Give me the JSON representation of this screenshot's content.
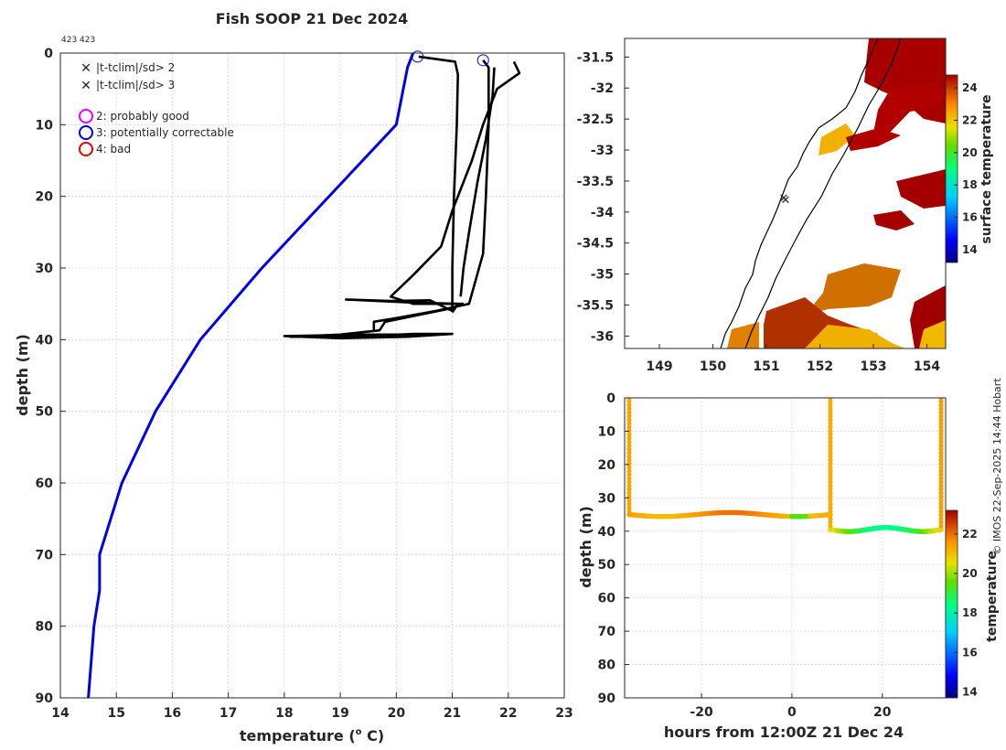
{
  "chart_data": [
    {
      "type": "line",
      "title": "Fish SOOP 21 Dec 2024",
      "subtitle": "423 423",
      "xlabel": "temperature (° C)",
      "xlabel_main": "temperature (",
      "xlabel_sup": "o",
      "xlabel_end": " C)",
      "ylabel": "depth (m)",
      "xlim": [
        14,
        23
      ],
      "ylim": [
        0,
        90
      ],
      "xticks": [
        14,
        15,
        16,
        17,
        18,
        19,
        20,
        21,
        22,
        23
      ],
      "yticks": [
        0,
        10,
        20,
        30,
        40,
        50,
        60,
        70,
        80,
        90
      ],
      "grid": true,
      "legend": {
        "position": "top-left",
        "entries": [
          {
            "label": "|t-tclim|/sd> 2",
            "marker": "x",
            "color": "#00dd00"
          },
          {
            "label": "|t-tclim|/sd> 3",
            "marker": "x",
            "color": "#ee0000"
          },
          {
            "label": "2: probably good",
            "marker": "o",
            "color": "#ee00ee"
          },
          {
            "label": "3: potentially correctable",
            "marker": "o",
            "color": "#0000ee"
          },
          {
            "label": "4: bad",
            "marker": "o",
            "color": "#ee0000"
          }
        ]
      },
      "series": [
        {
          "name": "climatology",
          "color": "#0000ee",
          "points": [
            [
              20.3,
              0
            ],
            [
              20.2,
              2
            ],
            [
              20.0,
              10
            ],
            [
              17.6,
              30
            ],
            [
              16.5,
              40
            ],
            [
              15.7,
              50
            ],
            [
              15.1,
              60
            ],
            [
              14.7,
              70
            ],
            [
              14.7,
              75
            ],
            [
              14.6,
              80
            ],
            [
              14.5,
              90
            ]
          ]
        },
        {
          "name": "profile-1",
          "color": "#000000",
          "points": [
            [
              20.4,
              0.5
            ],
            [
              21.05,
              1.2
            ],
            [
              21.1,
              3
            ],
            [
              21.08,
              10
            ],
            [
              21.03,
              20
            ],
            [
              21.0,
              30
            ],
            [
              21.0,
              36
            ],
            [
              20.6,
              34.5
            ],
            [
              19.9,
              34.6
            ],
            [
              19.1,
              34.4
            ],
            [
              20.2,
              34.8
            ],
            [
              21.1,
              35.0
            ],
            [
              21.0,
              36.2
            ]
          ]
        },
        {
          "name": "profile-2",
          "color": "#000000",
          "points": [
            [
              21.0,
              35.6
            ],
            [
              19.8,
              37.5
            ],
            [
              19.7,
              38.7
            ],
            [
              19.0,
              39.3
            ],
            [
              18.1,
              39.6
            ],
            [
              19.5,
              39.5
            ],
            [
              20.3,
              39.2
            ],
            [
              21.0,
              39.2
            ],
            [
              20.2,
              39.6
            ],
            [
              19.0,
              39.8
            ],
            [
              18.0,
              39.5
            ],
            [
              19.5,
              39.3
            ],
            [
              20.8,
              39.3
            ]
          ]
        },
        {
          "name": "profile-3",
          "color": "#000000",
          "points": [
            [
              21.55,
              1
            ],
            [
              21.65,
              2
            ],
            [
              21.65,
              10
            ],
            [
              21.6,
              20
            ],
            [
              21.55,
              28
            ],
            [
              21.3,
              35
            ],
            [
              20.7,
              36
            ],
            [
              20.0,
              37
            ],
            [
              19.6,
              37.5
            ],
            [
              19.6,
              38.7
            ]
          ]
        },
        {
          "name": "profile-4",
          "color": "#000000",
          "points": [
            [
              21.75,
              2
            ],
            [
              21.72,
              6
            ],
            [
              21.6,
              12
            ],
            [
              21.45,
              18
            ],
            [
              21.3,
              25
            ],
            [
              21.2,
              30
            ],
            [
              21.15,
              34
            ]
          ]
        },
        {
          "name": "profile-5",
          "color": "#000000",
          "points": [
            [
              22.1,
              1.2
            ],
            [
              22.2,
              2.8
            ],
            [
              21.8,
              5
            ],
            [
              21.55,
              10
            ],
            [
              21.35,
              15
            ],
            [
              21.0,
              22
            ],
            [
              20.8,
              27
            ],
            [
              20.3,
              31
            ],
            [
              19.9,
              34
            ],
            [
              20.3,
              35.0
            ],
            [
              21.2,
              35.0
            ]
          ]
        }
      ],
      "annotations": [
        {
          "type": "circle",
          "x": 20.38,
          "y": 0.5,
          "color": "#0000ee"
        },
        {
          "type": "circle",
          "x": 21.55,
          "y": 1.0,
          "color": "#0000ee"
        }
      ]
    },
    {
      "type": "heatmap",
      "xticks": [
        149,
        150,
        151,
        152,
        153,
        154
      ],
      "yticks": [
        -31.5,
        -32,
        -32.5,
        -33,
        -33.5,
        -34,
        -34.5,
        -35,
        -35.5,
        -36
      ],
      "xlim": [
        148.35,
        154.35
      ],
      "ylim": [
        -36.2,
        -31.2
      ],
      "colorbar": {
        "label": "surface temperature",
        "ticks": [
          14,
          16,
          18,
          20,
          22,
          24
        ],
        "range": [
          13.2,
          24.8
        ]
      },
      "ship_position": {
        "lon": 151.32,
        "lat": -33.68
      }
    },
    {
      "type": "scatter",
      "xlabel": "hours from 12:00Z 21 Dec 24",
      "ylabel": "depth (m)",
      "xlim": [
        -37,
        34
      ],
      "ylim": [
        0,
        90
      ],
      "xticks": [
        -20,
        0,
        20
      ],
      "yticks": [
        0,
        10,
        20,
        30,
        40,
        50,
        60,
        70,
        80,
        90
      ],
      "colorbar": {
        "label": "temperature",
        "ticks": [
          14,
          16,
          18,
          20,
          22
        ],
        "range": [
          13.7,
          23.2
        ]
      },
      "series": [
        {
          "name": "tow-1",
          "from_hours": -36,
          "to_hours": 8.5,
          "depth": 35,
          "temperature_range": [
            19.5,
            21.5
          ]
        },
        {
          "name": "tow-2",
          "from_hours": 8.5,
          "to_hours": 33,
          "depth": 39.5,
          "temperature_range": [
            18.3,
            20.8
          ]
        },
        {
          "name": "cast-1",
          "hours": -36,
          "depth_range": [
            0,
            35
          ],
          "temperature": 21.3
        },
        {
          "name": "cast-2",
          "hours": 8.5,
          "depth_range": [
            0,
            39
          ],
          "temperature": 21.2
        },
        {
          "name": "cast-3",
          "hours": 33,
          "depth_range": [
            0,
            39
          ],
          "temperature": 21.4
        }
      ]
    }
  ],
  "credit": "© IMOS 22-Sep-2025 14:44 Hobart"
}
